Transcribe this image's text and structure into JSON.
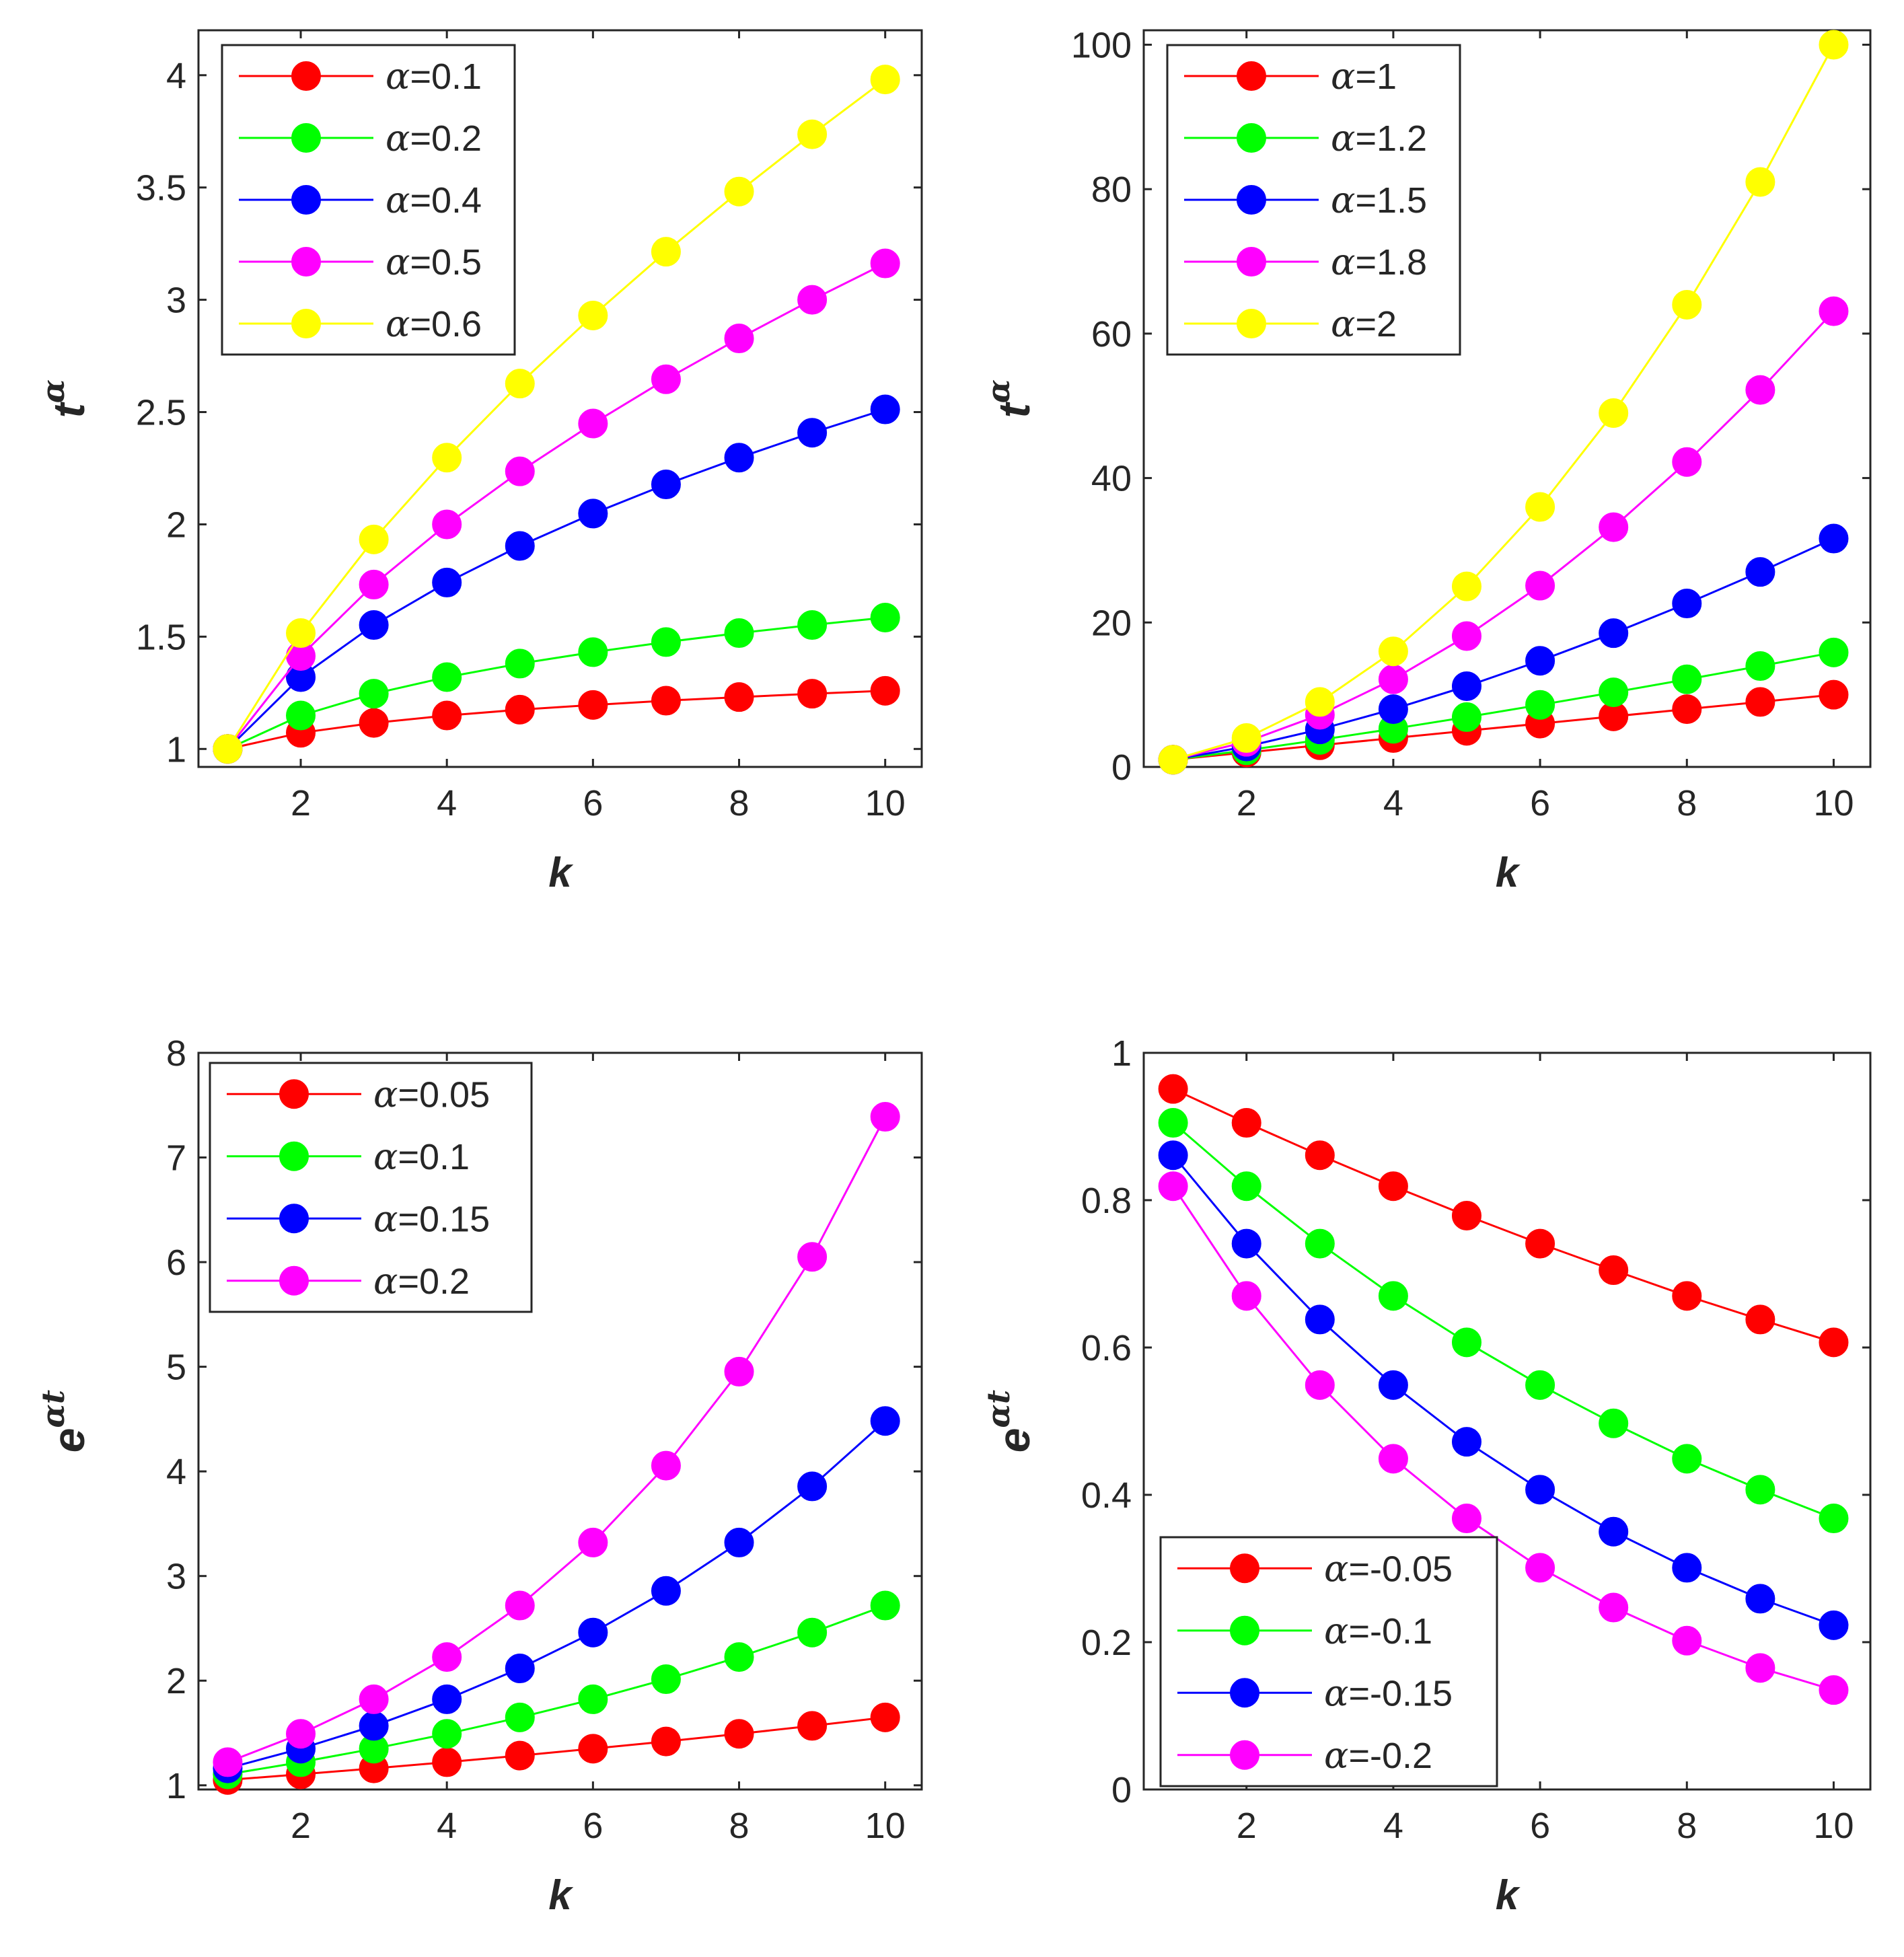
{
  "colors": {
    "red": "#ff0000",
    "green": "#00ff00",
    "blue": "#0000ff",
    "magenta": "#ff00ff",
    "yellow": "#ffff00",
    "axis": "#262626"
  },
  "chart_data": [
    {
      "type": "line",
      "position": "top-left",
      "xlabel": "k",
      "ylabel": {
        "base": "t",
        "sup": "α"
      },
      "xlim": [
        0.6,
        10.5
      ],
      "ylim": [
        0.92,
        4.2
      ],
      "xticks": [
        "2",
        "4",
        "6",
        "8",
        "10"
      ],
      "xtick_values": [
        2,
        4,
        6,
        8,
        10
      ],
      "yticks": [
        "1",
        "1.5",
        "2",
        "2.5",
        "3",
        "3.5",
        "4"
      ],
      "ytick_values": [
        1,
        1.5,
        2,
        2.5,
        3,
        3.5,
        4
      ],
      "legend_location": "top-left",
      "x": [
        1,
        2,
        3,
        4,
        5,
        6,
        7,
        8,
        9,
        10
      ],
      "series": [
        {
          "name": "α=0.1",
          "sym": "α",
          "rest": "=0.1",
          "color": "#ff0000",
          "values": [
            1,
            1.072,
            1.116,
            1.149,
            1.175,
            1.196,
            1.215,
            1.231,
            1.246,
            1.259
          ]
        },
        {
          "name": "α=0.2",
          "sym": "α",
          "rest": "=0.2",
          "color": "#00ff00",
          "values": [
            1,
            1.149,
            1.246,
            1.32,
            1.38,
            1.431,
            1.476,
            1.516,
            1.552,
            1.585
          ]
        },
        {
          "name": "α=0.4",
          "sym": "α",
          "rest": "=0.4",
          "color": "#0000ff",
          "values": [
            1,
            1.32,
            1.552,
            1.741,
            1.904,
            2.048,
            2.178,
            2.297,
            2.408,
            2.512
          ]
        },
        {
          "name": "α=0.5",
          "sym": "α",
          "rest": "=0.5",
          "color": "#ff00ff",
          "values": [
            1,
            1.414,
            1.732,
            2.0,
            2.236,
            2.449,
            2.646,
            2.828,
            3.0,
            3.162
          ]
        },
        {
          "name": "α=0.6",
          "sym": "α",
          "rest": "=0.6",
          "color": "#ffff00",
          "values": [
            1,
            1.516,
            1.933,
            2.297,
            2.627,
            2.93,
            3.214,
            3.482,
            3.737,
            3.981
          ]
        }
      ]
    },
    {
      "type": "line",
      "position": "top-right",
      "xlabel": "k",
      "ylabel": {
        "base": "t",
        "sup": "α"
      },
      "xlim": [
        0.6,
        10.5
      ],
      "ylim": [
        0,
        102
      ],
      "xticks": [
        "2",
        "4",
        "6",
        "8",
        "10"
      ],
      "xtick_values": [
        2,
        4,
        6,
        8,
        10
      ],
      "yticks": [
        "0",
        "20",
        "40",
        "60",
        "80",
        "100"
      ],
      "ytick_values": [
        0,
        20,
        40,
        60,
        80,
        100
      ],
      "legend_location": "top-left",
      "x": [
        1,
        2,
        3,
        4,
        5,
        6,
        7,
        8,
        9,
        10
      ],
      "series": [
        {
          "name": "α=1",
          "sym": "α",
          "rest": "=1",
          "color": "#ff0000",
          "values": [
            1,
            2,
            3,
            4,
            5,
            6,
            7,
            8,
            9,
            10
          ]
        },
        {
          "name": "α=1.2",
          "sym": "α",
          "rest": "=1.2",
          "color": "#00ff00",
          "values": [
            1,
            2.3,
            3.74,
            5.28,
            6.9,
            8.59,
            10.33,
            12.13,
            13.97,
            15.85
          ]
        },
        {
          "name": "α=1.5",
          "sym": "α",
          "rest": "=1.5",
          "color": "#0000ff",
          "values": [
            1,
            2.83,
            5.2,
            8.0,
            11.18,
            14.7,
            18.52,
            22.63,
            27.0,
            31.62
          ]
        },
        {
          "name": "α=1.8",
          "sym": "α",
          "rest": "=1.8",
          "color": "#ff00ff",
          "values": [
            1,
            3.48,
            7.22,
            12.13,
            18.12,
            25.1,
            33.2,
            42.22,
            52.2,
            63.1
          ]
        },
        {
          "name": "α=2",
          "sym": "α",
          "rest": "=2",
          "color": "#ffff00",
          "values": [
            1,
            4,
            9,
            16,
            25,
            36,
            49,
            64,
            81,
            100
          ]
        }
      ]
    },
    {
      "type": "line",
      "position": "bottom-left",
      "xlabel": "k",
      "ylabel": {
        "base": "e",
        "sup": "αt"
      },
      "xlim": [
        0.6,
        10.5
      ],
      "ylim": [
        0.96,
        8
      ],
      "xticks": [
        "2",
        "4",
        "6",
        "8",
        "10"
      ],
      "xtick_values": [
        2,
        4,
        6,
        8,
        10
      ],
      "yticks": [
        "1",
        "2",
        "3",
        "4",
        "5",
        "6",
        "7",
        "8"
      ],
      "ytick_values": [
        1,
        2,
        3,
        4,
        5,
        6,
        7,
        8
      ],
      "legend_location": "top-left",
      "x": [
        1,
        2,
        3,
        4,
        5,
        6,
        7,
        8,
        9,
        10
      ],
      "series": [
        {
          "name": "α=0.05",
          "sym": "α",
          "rest": "=0.05",
          "color": "#ff0000",
          "values": [
            1.051,
            1.105,
            1.162,
            1.221,
            1.284,
            1.35,
            1.419,
            1.492,
            1.568,
            1.649
          ]
        },
        {
          "name": "α=0.1",
          "sym": "α",
          "rest": "=0.1",
          "color": "#00ff00",
          "values": [
            1.105,
            1.221,
            1.35,
            1.492,
            1.649,
            1.822,
            2.014,
            2.226,
            2.46,
            2.718
          ]
        },
        {
          "name": "α=0.15",
          "sym": "α",
          "rest": "=0.15",
          "color": "#0000ff",
          "values": [
            1.162,
            1.35,
            1.568,
            1.822,
            2.117,
            2.46,
            2.858,
            3.32,
            3.857,
            4.482
          ]
        },
        {
          "name": "α=0.2",
          "sym": "α",
          "rest": "=0.2",
          "color": "#ff00ff",
          "values": [
            1.221,
            1.492,
            1.822,
            2.226,
            2.718,
            3.32,
            4.055,
            4.953,
            6.05,
            7.389
          ]
        }
      ]
    },
    {
      "type": "line",
      "position": "bottom-right",
      "xlabel": "k",
      "ylabel": {
        "base": "e",
        "sup": "αt"
      },
      "xlim": [
        0.6,
        10.5
      ],
      "ylim": [
        0,
        1
      ],
      "xticks": [
        "2",
        "4",
        "6",
        "8",
        "10"
      ],
      "xtick_values": [
        2,
        4,
        6,
        8,
        10
      ],
      "yticks": [
        "0",
        "0.2",
        "0.4",
        "0.6",
        "0.8",
        "1"
      ],
      "ytick_values": [
        0,
        0.2,
        0.4,
        0.6,
        0.8,
        1
      ],
      "legend_location": "bottom-left",
      "x": [
        1,
        2,
        3,
        4,
        5,
        6,
        7,
        8,
        9,
        10
      ],
      "series": [
        {
          "name": "α=-0.05",
          "sym": "α",
          "rest": "=-0.05",
          "color": "#ff0000",
          "values": [
            0.951,
            0.905,
            0.861,
            0.819,
            0.779,
            0.741,
            0.705,
            0.67,
            0.638,
            0.607
          ]
        },
        {
          "name": "α=-0.1",
          "sym": "α",
          "rest": "=-0.1",
          "color": "#00ff00",
          "values": [
            0.905,
            0.819,
            0.741,
            0.67,
            0.607,
            0.549,
            0.497,
            0.449,
            0.407,
            0.368
          ]
        },
        {
          "name": "α=-0.15",
          "sym": "α",
          "rest": "=-0.15",
          "color": "#0000ff",
          "values": [
            0.861,
            0.741,
            0.638,
            0.549,
            0.472,
            0.407,
            0.35,
            0.301,
            0.259,
            0.223
          ]
        },
        {
          "name": "α=-0.2",
          "sym": "α",
          "rest": "=-0.2",
          "color": "#ff00ff",
          "values": [
            0.819,
            0.67,
            0.549,
            0.449,
            0.368,
            0.301,
            0.247,
            0.202,
            0.165,
            0.135
          ]
        }
      ]
    }
  ]
}
